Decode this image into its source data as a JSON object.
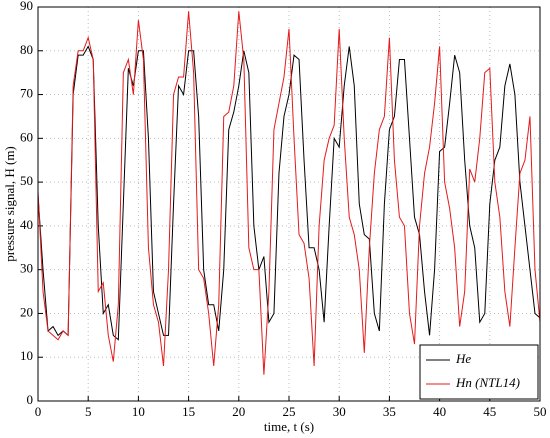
{
  "chart_data": {
    "type": "line",
    "xlabel": "time, t (s)",
    "ylabel": "pressure signal, H (m)",
    "x": [
      0,
      0.5,
      1,
      1.5,
      2,
      2.5,
      3,
      3.5,
      4,
      4.5,
      5,
      5.5,
      6,
      6.5,
      7,
      7.5,
      8,
      8.5,
      9,
      9.5,
      10,
      10.5,
      11,
      11.5,
      12,
      12.5,
      13,
      13.5,
      14,
      14.5,
      15,
      15.5,
      16,
      16.5,
      17,
      17.5,
      18,
      18.5,
      19,
      19.5,
      20,
      20.5,
      21,
      21.5,
      22,
      22.5,
      23,
      23.5,
      24,
      24.5,
      25,
      25.5,
      26,
      26.5,
      27,
      27.5,
      28,
      28.5,
      29,
      29.5,
      30,
      30.5,
      31,
      31.5,
      32,
      32.5,
      33,
      33.5,
      34,
      34.5,
      35,
      35.5,
      36,
      36.5,
      37,
      37.5,
      38,
      38.5,
      39,
      39.5,
      40,
      40.5,
      41,
      41.5,
      42,
      42.5,
      43,
      43.5,
      44,
      44.5,
      45,
      45.5,
      46,
      46.5,
      47,
      47.5,
      48,
      48.5,
      49,
      49.5,
      50
    ],
    "series": [
      {
        "name": "He",
        "color": "#000000",
        "values": [
          47,
          30,
          16,
          17,
          15,
          16,
          15,
          70,
          79,
          79,
          81,
          78,
          40,
          20,
          22,
          15,
          14,
          45,
          76,
          72,
          80,
          80,
          60,
          25,
          20,
          15,
          15,
          45,
          72,
          70,
          80,
          80,
          65,
          30,
          22,
          22,
          16,
          30,
          62,
          66,
          72,
          80,
          75,
          40,
          30,
          33,
          18,
          20,
          52,
          65,
          70,
          79,
          78,
          55,
          35,
          35,
          30,
          18,
          40,
          60,
          58,
          72,
          81,
          72,
          45,
          38,
          37,
          20,
          16,
          45,
          62,
          65,
          78,
          78,
          60,
          42,
          38,
          25,
          15,
          30,
          57,
          58,
          68,
          79,
          75,
          55,
          40,
          35,
          18,
          20,
          45,
          55,
          58,
          72,
          77,
          70,
          50,
          40,
          30,
          20,
          19
        ]
      },
      {
        "name": "Hn (NTL14)",
        "color": "#e41a1c",
        "values": [
          48,
          25,
          16,
          15,
          14,
          16,
          15,
          72,
          80,
          80,
          83,
          78,
          25,
          27,
          15,
          9,
          22,
          75,
          78,
          70,
          87,
          78,
          35,
          22,
          18,
          8,
          30,
          70,
          74,
          74,
          89,
          75,
          30,
          28,
          20,
          8,
          22,
          65,
          66,
          72,
          89,
          78,
          35,
          30,
          30,
          6,
          25,
          62,
          68,
          74,
          85,
          60,
          38,
          36,
          28,
          8,
          40,
          55,
          60,
          63,
          85,
          60,
          42,
          38,
          30,
          11,
          35,
          52,
          62,
          65,
          83,
          55,
          42,
          40,
          20,
          13,
          40,
          52,
          58,
          68,
          81,
          50,
          44,
          35,
          17,
          25,
          53,
          50,
          60,
          75,
          76,
          50,
          42,
          25,
          17,
          35,
          52,
          55,
          65,
          30,
          18
        ]
      }
    ],
    "xlim": [
      0,
      50
    ],
    "xticks": [
      0,
      5,
      10,
      15,
      20,
      25,
      30,
      35,
      40,
      45,
      50
    ],
    "ylim": [
      0,
      90
    ],
    "yticks": [
      0,
      10,
      20,
      30,
      40,
      50,
      60,
      70,
      80,
      90
    ],
    "grid": true,
    "legend": "lower right"
  }
}
